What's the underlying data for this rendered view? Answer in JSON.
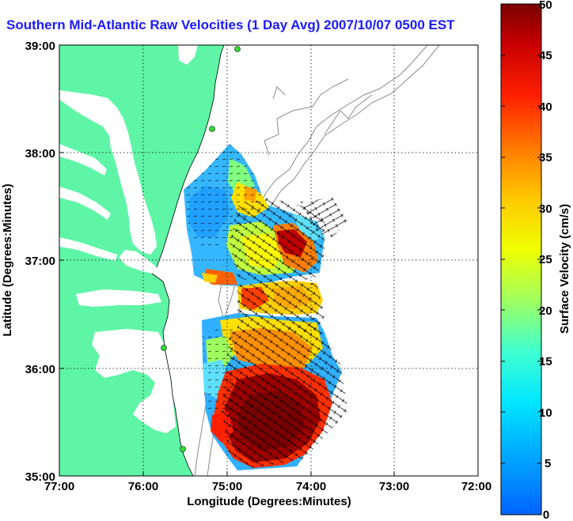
{
  "title": "Southern Mid-Atlantic Raw Velocities (1 Day Avg) 2007/10/07 0500 EST",
  "map": {
    "xlabel": "Longitude (Degrees:Minutes)",
    "ylabel": "Latitude (Degrees:Minutes)",
    "x_ticks": [
      "77:00",
      "76:00",
      "75:00",
      "74:00",
      "73:00",
      "72:00"
    ],
    "y_ticks": [
      "39:00",
      "38:00",
      "37:00",
      "36:00",
      "35:00"
    ],
    "x_range_deg_west": [
      77,
      72
    ],
    "y_range_deg_north": [
      35,
      39
    ],
    "grid": "dotted",
    "land_color": "#5ff5a6",
    "water_color": "#ffffff",
    "contour_color": "#8a8a8a",
    "station_color": "#33dd33"
  },
  "colorbar": {
    "label": "Surface Velocity (cm/s)",
    "ticks": [
      "0",
      "5",
      "10",
      "15",
      "20",
      "25",
      "30",
      "35",
      "40",
      "45",
      "50"
    ],
    "range": [
      0,
      50
    ],
    "colormap": "jet"
  }
}
